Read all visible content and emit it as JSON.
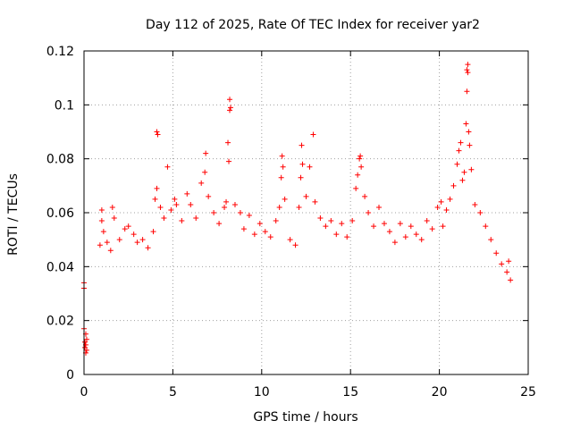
{
  "chart_data": {
    "type": "scatter",
    "title": "Day 112 of 2025, Rate Of TEC Index for receiver yar2",
    "xlabel": "GPS time / hours",
    "ylabel": "ROTI / TECUs",
    "xlim": [
      0,
      25
    ],
    "ylim": [
      0,
      0.12
    ],
    "xticks": [
      0,
      5,
      10,
      15,
      20,
      25
    ],
    "xtick_labels": [
      "0",
      "5",
      "10",
      "15",
      "20",
      "25"
    ],
    "yticks": [
      0,
      0.02,
      0.04,
      0.06,
      0.08,
      0.1,
      0.12
    ],
    "ytick_labels": [
      "0",
      "0.02",
      "0.04",
      "0.06",
      "0.08",
      "0.1",
      "0.12"
    ],
    "grid": true,
    "marker": "+",
    "color": "#ff0000",
    "series": [
      {
        "name": "yar2 ROTI",
        "points": [
          [
            0.0,
            0.034
          ],
          [
            0.0,
            0.032
          ],
          [
            0.0,
            0.017
          ],
          [
            0.05,
            0.012
          ],
          [
            0.05,
            0.01
          ],
          [
            0.1,
            0.015
          ],
          [
            0.1,
            0.011
          ],
          [
            0.1,
            0.008
          ],
          [
            0.15,
            0.013
          ],
          [
            0.15,
            0.009
          ],
          [
            0.9,
            0.048
          ],
          [
            1.0,
            0.061
          ],
          [
            1.0,
            0.057
          ],
          [
            1.1,
            0.053
          ],
          [
            1.3,
            0.049
          ],
          [
            1.5,
            0.046
          ],
          [
            1.6,
            0.062
          ],
          [
            1.7,
            0.058
          ],
          [
            2.0,
            0.05
          ],
          [
            2.3,
            0.054
          ],
          [
            2.5,
            0.055
          ],
          [
            2.8,
            0.052
          ],
          [
            3.0,
            0.049
          ],
          [
            3.3,
            0.05
          ],
          [
            3.6,
            0.047
          ],
          [
            3.9,
            0.053
          ],
          [
            4.0,
            0.065
          ],
          [
            4.1,
            0.069
          ],
          [
            4.1,
            0.09
          ],
          [
            4.15,
            0.089
          ],
          [
            4.3,
            0.062
          ],
          [
            4.5,
            0.058
          ],
          [
            4.7,
            0.077
          ],
          [
            4.9,
            0.061
          ],
          [
            5.1,
            0.065
          ],
          [
            5.2,
            0.063
          ],
          [
            5.5,
            0.057
          ],
          [
            5.8,
            0.067
          ],
          [
            6.0,
            0.063
          ],
          [
            6.3,
            0.058
          ],
          [
            6.6,
            0.071
          ],
          [
            6.8,
            0.075
          ],
          [
            6.85,
            0.082
          ],
          [
            7.0,
            0.066
          ],
          [
            7.3,
            0.06
          ],
          [
            7.6,
            0.056
          ],
          [
            7.9,
            0.062
          ],
          [
            8.0,
            0.064
          ],
          [
            8.1,
            0.086
          ],
          [
            8.15,
            0.079
          ],
          [
            8.2,
            0.098
          ],
          [
            8.25,
            0.099
          ],
          [
            8.2,
            0.102
          ],
          [
            8.5,
            0.063
          ],
          [
            8.8,
            0.06
          ],
          [
            9.0,
            0.054
          ],
          [
            9.3,
            0.059
          ],
          [
            9.6,
            0.052
          ],
          [
            9.9,
            0.056
          ],
          [
            10.2,
            0.053
          ],
          [
            10.5,
            0.051
          ],
          [
            10.8,
            0.057
          ],
          [
            11.0,
            0.062
          ],
          [
            11.1,
            0.073
          ],
          [
            11.15,
            0.081
          ],
          [
            11.2,
            0.077
          ],
          [
            11.3,
            0.065
          ],
          [
            11.6,
            0.05
          ],
          [
            11.9,
            0.048
          ],
          [
            12.1,
            0.062
          ],
          [
            12.2,
            0.073
          ],
          [
            12.25,
            0.085
          ],
          [
            12.3,
            0.078
          ],
          [
            12.5,
            0.066
          ],
          [
            12.7,
            0.077
          ],
          [
            12.9,
            0.089
          ],
          [
            13.0,
            0.064
          ],
          [
            13.3,
            0.058
          ],
          [
            13.6,
            0.055
          ],
          [
            13.9,
            0.057
          ],
          [
            14.2,
            0.052
          ],
          [
            14.5,
            0.056
          ],
          [
            14.8,
            0.051
          ],
          [
            15.1,
            0.057
          ],
          [
            15.3,
            0.069
          ],
          [
            15.4,
            0.074
          ],
          [
            15.5,
            0.08
          ],
          [
            15.55,
            0.081
          ],
          [
            15.6,
            0.077
          ],
          [
            15.8,
            0.066
          ],
          [
            16.0,
            0.06
          ],
          [
            16.3,
            0.055
          ],
          [
            16.6,
            0.062
          ],
          [
            16.9,
            0.056
          ],
          [
            17.2,
            0.053
          ],
          [
            17.5,
            0.049
          ],
          [
            17.8,
            0.056
          ],
          [
            18.1,
            0.051
          ],
          [
            18.4,
            0.055
          ],
          [
            18.7,
            0.052
          ],
          [
            19.0,
            0.05
          ],
          [
            19.3,
            0.057
          ],
          [
            19.6,
            0.054
          ],
          [
            19.9,
            0.062
          ],
          [
            20.1,
            0.064
          ],
          [
            20.2,
            0.055
          ],
          [
            20.4,
            0.061
          ],
          [
            20.6,
            0.065
          ],
          [
            20.8,
            0.07
          ],
          [
            21.0,
            0.078
          ],
          [
            21.1,
            0.083
          ],
          [
            21.2,
            0.086
          ],
          [
            21.3,
            0.072
          ],
          [
            21.4,
            0.075
          ],
          [
            21.5,
            0.093
          ],
          [
            21.55,
            0.105
          ],
          [
            21.55,
            0.113
          ],
          [
            21.6,
            0.115
          ],
          [
            21.6,
            0.112
          ],
          [
            21.65,
            0.09
          ],
          [
            21.7,
            0.085
          ],
          [
            21.8,
            0.076
          ],
          [
            22.0,
            0.063
          ],
          [
            22.3,
            0.06
          ],
          [
            22.6,
            0.055
          ],
          [
            22.9,
            0.05
          ],
          [
            23.2,
            0.045
          ],
          [
            23.5,
            0.041
          ],
          [
            23.8,
            0.038
          ],
          [
            23.9,
            0.042
          ],
          [
            24.0,
            0.035
          ]
        ]
      }
    ]
  }
}
